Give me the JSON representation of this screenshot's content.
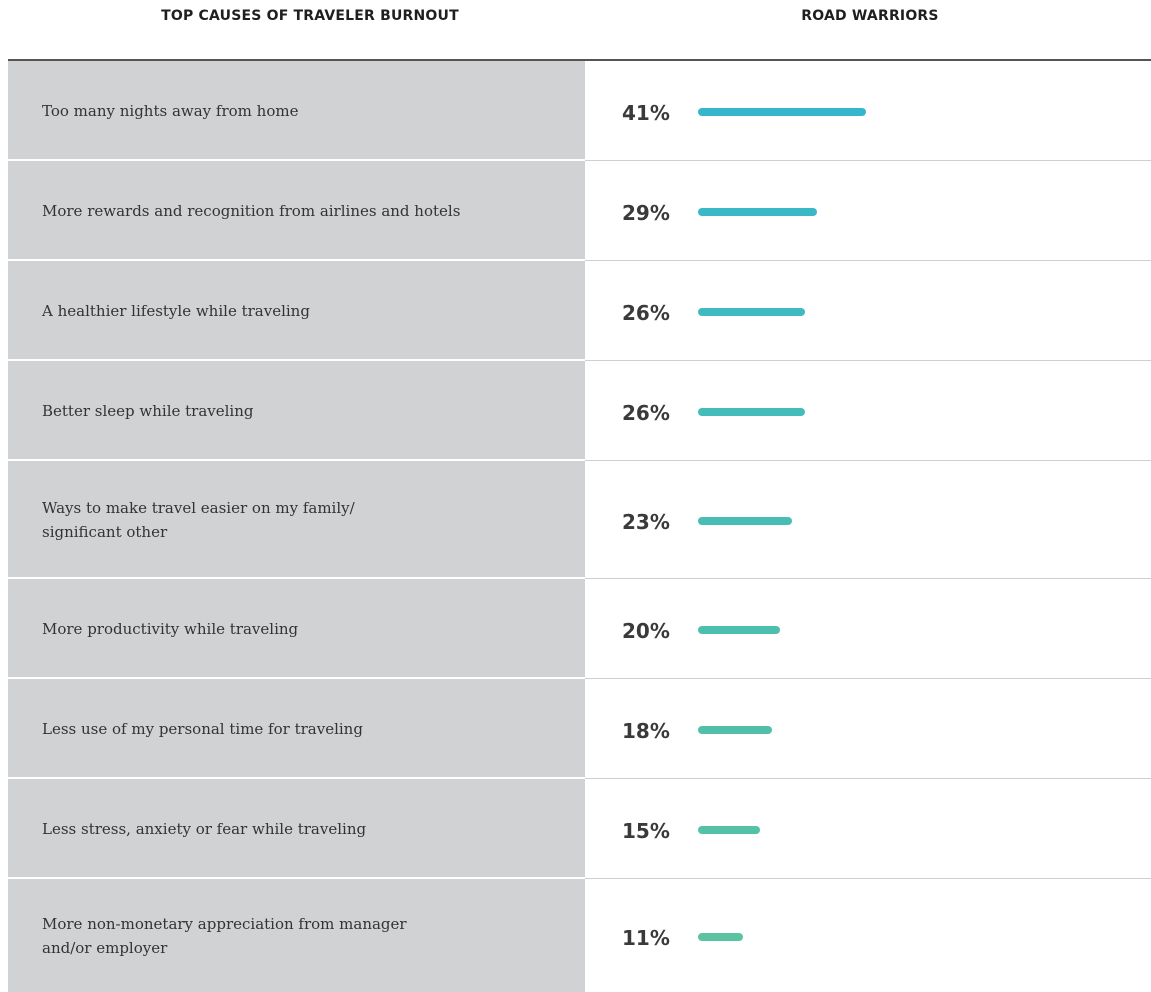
{
  "chart_data": {
    "type": "bar",
    "orientation": "horizontal",
    "column_titles": [
      "TOP CAUSES OF TRAVELER BURNOUT",
      "ROAD WARRIORS"
    ],
    "categories": [
      "Too many nights away from home",
      "More rewards and recognition from airlines and hotels",
      "A healthier lifestyle while traveling",
      "Better sleep while traveling",
      "Ways to make travel easier on my family/\nsignificant other",
      "More productivity while traveling",
      "Less use of my personal time for traveling",
      "Less stress, anxiety or fear while traveling",
      "More non-monetary appreciation from manager\nand/or employer"
    ],
    "values": [
      41,
      29,
      26,
      26,
      23,
      20,
      18,
      15,
      11
    ],
    "value_labels": [
      "41%",
      "29%",
      "26%",
      "26%",
      "23%",
      "20%",
      "18%",
      "15%",
      "11%"
    ],
    "colors": [
      "#35b6cb",
      "#3ab8c6",
      "#3fbac0",
      "#44bcba",
      "#48bdb4",
      "#4dbfae",
      "#52c0a9",
      "#56c2a5",
      "#5bc3a1"
    ]
  }
}
